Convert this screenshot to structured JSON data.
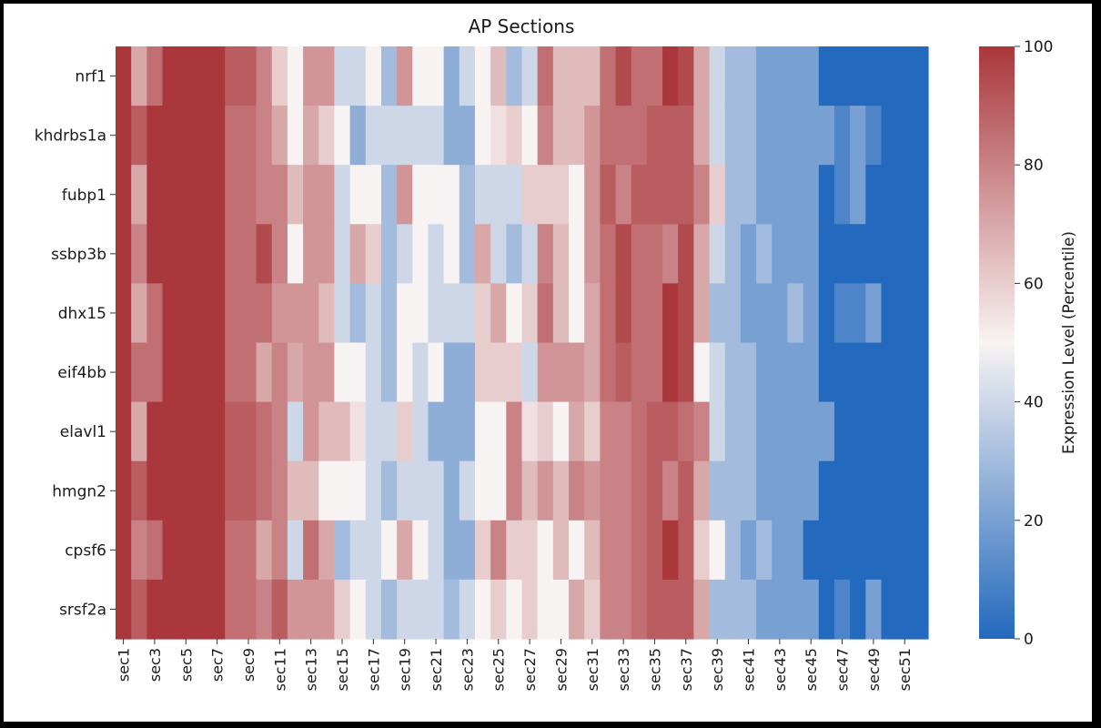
{
  "chart_data": {
    "type": "heatmap",
    "title": "AP Sections",
    "colorbar": {
      "label": "Expression Level (Percentile)",
      "min": 0,
      "max": 100,
      "ticks": [
        0,
        20,
        40,
        60,
        80,
        100
      ],
      "colormap": [
        "#2369bd",
        "#f8f3f3",
        "#a9373b"
      ]
    },
    "rows": [
      "nrf1",
      "khdrbs1a",
      "fubp1",
      "ssbp3b",
      "dhx15",
      "eif4bb",
      "elavl1",
      "hmgn2",
      "cpsf6",
      "srsf2a"
    ],
    "columns": [
      "sec1",
      "sec2",
      "sec3",
      "sec4",
      "sec5",
      "sec6",
      "sec7",
      "sec8",
      "sec9",
      "sec10",
      "sec11",
      "sec12",
      "sec13",
      "sec14",
      "sec15",
      "sec16",
      "sec17",
      "sec18",
      "sec19",
      "sec20",
      "sec21",
      "sec22",
      "sec23",
      "sec24",
      "sec25",
      "sec26",
      "sec27",
      "sec28",
      "sec29",
      "sec30",
      "sec31",
      "sec32",
      "sec33",
      "sec34",
      "sec35",
      "sec36",
      "sec37",
      "sec38",
      "sec39",
      "sec40",
      "sec41",
      "sec42",
      "sec43",
      "sec44",
      "sec45",
      "sec46",
      "sec47",
      "sec48",
      "sec49",
      "sec50",
      "sec51",
      "sec52"
    ],
    "x_tick_labels": [
      "sec1",
      "sec3",
      "sec5",
      "sec7",
      "sec9",
      "sec11",
      "sec13",
      "sec15",
      "sec17",
      "sec19",
      "sec21",
      "sec23",
      "sec25",
      "sec27",
      "sec29",
      "sec31",
      "sec33",
      "sec35",
      "sec37",
      "sec39",
      "sec41",
      "sec43",
      "sec45",
      "sec47",
      "sec49",
      "sec51"
    ],
    "values": [
      [
        100,
        70,
        85,
        100,
        100,
        100,
        100,
        90,
        90,
        80,
        60,
        50,
        75,
        75,
        40,
        40,
        50,
        30,
        75,
        50,
        50,
        25,
        40,
        50,
        65,
        30,
        40,
        85,
        65,
        65,
        65,
        85,
        95,
        85,
        85,
        100,
        95,
        70,
        40,
        30,
        30,
        20,
        20,
        20,
        20,
        0,
        0,
        0,
        0,
        0,
        0,
        0
      ],
      [
        100,
        90,
        100,
        100,
        100,
        100,
        100,
        85,
        85,
        80,
        70,
        50,
        70,
        60,
        50,
        25,
        40,
        40,
        40,
        40,
        40,
        25,
        25,
        50,
        55,
        60,
        50,
        80,
        65,
        65,
        75,
        85,
        85,
        85,
        90,
        90,
        90,
        70,
        40,
        30,
        30,
        20,
        20,
        20,
        20,
        20,
        10,
        20,
        10,
        0,
        0,
        0
      ],
      [
        100,
        70,
        100,
        100,
        100,
        100,
        100,
        85,
        85,
        80,
        80,
        65,
        75,
        75,
        40,
        50,
        50,
        30,
        75,
        50,
        50,
        50,
        30,
        40,
        40,
        40,
        60,
        60,
        60,
        50,
        75,
        90,
        80,
        90,
        90,
        90,
        90,
        80,
        60,
        30,
        30,
        20,
        20,
        20,
        20,
        0,
        10,
        20,
        0,
        0,
        0,
        0
      ],
      [
        100,
        80,
        100,
        100,
        100,
        100,
        100,
        85,
        85,
        95,
        80,
        50,
        75,
        75,
        40,
        70,
        60,
        30,
        40,
        50,
        40,
        50,
        30,
        70,
        40,
        30,
        40,
        80,
        65,
        50,
        75,
        85,
        95,
        85,
        85,
        80,
        95,
        70,
        40,
        30,
        20,
        30,
        20,
        20,
        20,
        0,
        0,
        0,
        0,
        0,
        0,
        0
      ],
      [
        100,
        70,
        85,
        100,
        100,
        100,
        100,
        85,
        85,
        85,
        75,
        75,
        75,
        65,
        40,
        30,
        40,
        30,
        50,
        50,
        40,
        40,
        40,
        60,
        70,
        50,
        60,
        85,
        65,
        50,
        70,
        85,
        95,
        85,
        85,
        100,
        95,
        70,
        30,
        30,
        20,
        20,
        20,
        30,
        20,
        0,
        10,
        10,
        20,
        0,
        0,
        0
      ],
      [
        100,
        85,
        85,
        100,
        100,
        100,
        100,
        85,
        85,
        70,
        80,
        70,
        75,
        75,
        50,
        50,
        40,
        30,
        50,
        40,
        50,
        25,
        25,
        60,
        60,
        60,
        40,
        75,
        75,
        75,
        70,
        85,
        90,
        85,
        85,
        100,
        95,
        50,
        40,
        30,
        30,
        20,
        20,
        20,
        20,
        0,
        0,
        0,
        0,
        0,
        0,
        0
      ],
      [
        100,
        70,
        100,
        100,
        100,
        100,
        100,
        90,
        90,
        85,
        80,
        40,
        75,
        65,
        65,
        55,
        40,
        40,
        60,
        40,
        25,
        25,
        25,
        50,
        50,
        80,
        55,
        60,
        50,
        70,
        60,
        80,
        80,
        85,
        90,
        90,
        85,
        80,
        40,
        30,
        30,
        20,
        20,
        20,
        20,
        20,
        0,
        0,
        0,
        0,
        0,
        0
      ],
      [
        100,
        90,
        100,
        100,
        100,
        100,
        100,
        90,
        90,
        85,
        80,
        65,
        65,
        50,
        50,
        50,
        40,
        30,
        40,
        40,
        40,
        25,
        40,
        50,
        50,
        80,
        65,
        75,
        65,
        80,
        75,
        80,
        80,
        85,
        90,
        80,
        90,
        70,
        30,
        30,
        30,
        20,
        20,
        20,
        20,
        0,
        0,
        0,
        0,
        0,
        0,
        0
      ],
      [
        100,
        80,
        85,
        100,
        100,
        100,
        100,
        85,
        85,
        70,
        80,
        40,
        85,
        70,
        30,
        40,
        40,
        50,
        70,
        50,
        40,
        25,
        25,
        60,
        80,
        60,
        60,
        50,
        65,
        50,
        65,
        80,
        80,
        85,
        90,
        100,
        90,
        60,
        50,
        30,
        20,
        30,
        20,
        20,
        0,
        0,
        0,
        0,
        0,
        0,
        0,
        0
      ],
      [
        100,
        90,
        100,
        100,
        100,
        100,
        100,
        85,
        85,
        80,
        90,
        75,
        75,
        75,
        60,
        50,
        40,
        30,
        40,
        40,
        40,
        30,
        40,
        50,
        60,
        50,
        60,
        50,
        50,
        70,
        60,
        80,
        80,
        85,
        90,
        90,
        90,
        70,
        30,
        30,
        30,
        20,
        20,
        20,
        20,
        0,
        10,
        0,
        20,
        0,
        0,
        0
      ]
    ]
  }
}
